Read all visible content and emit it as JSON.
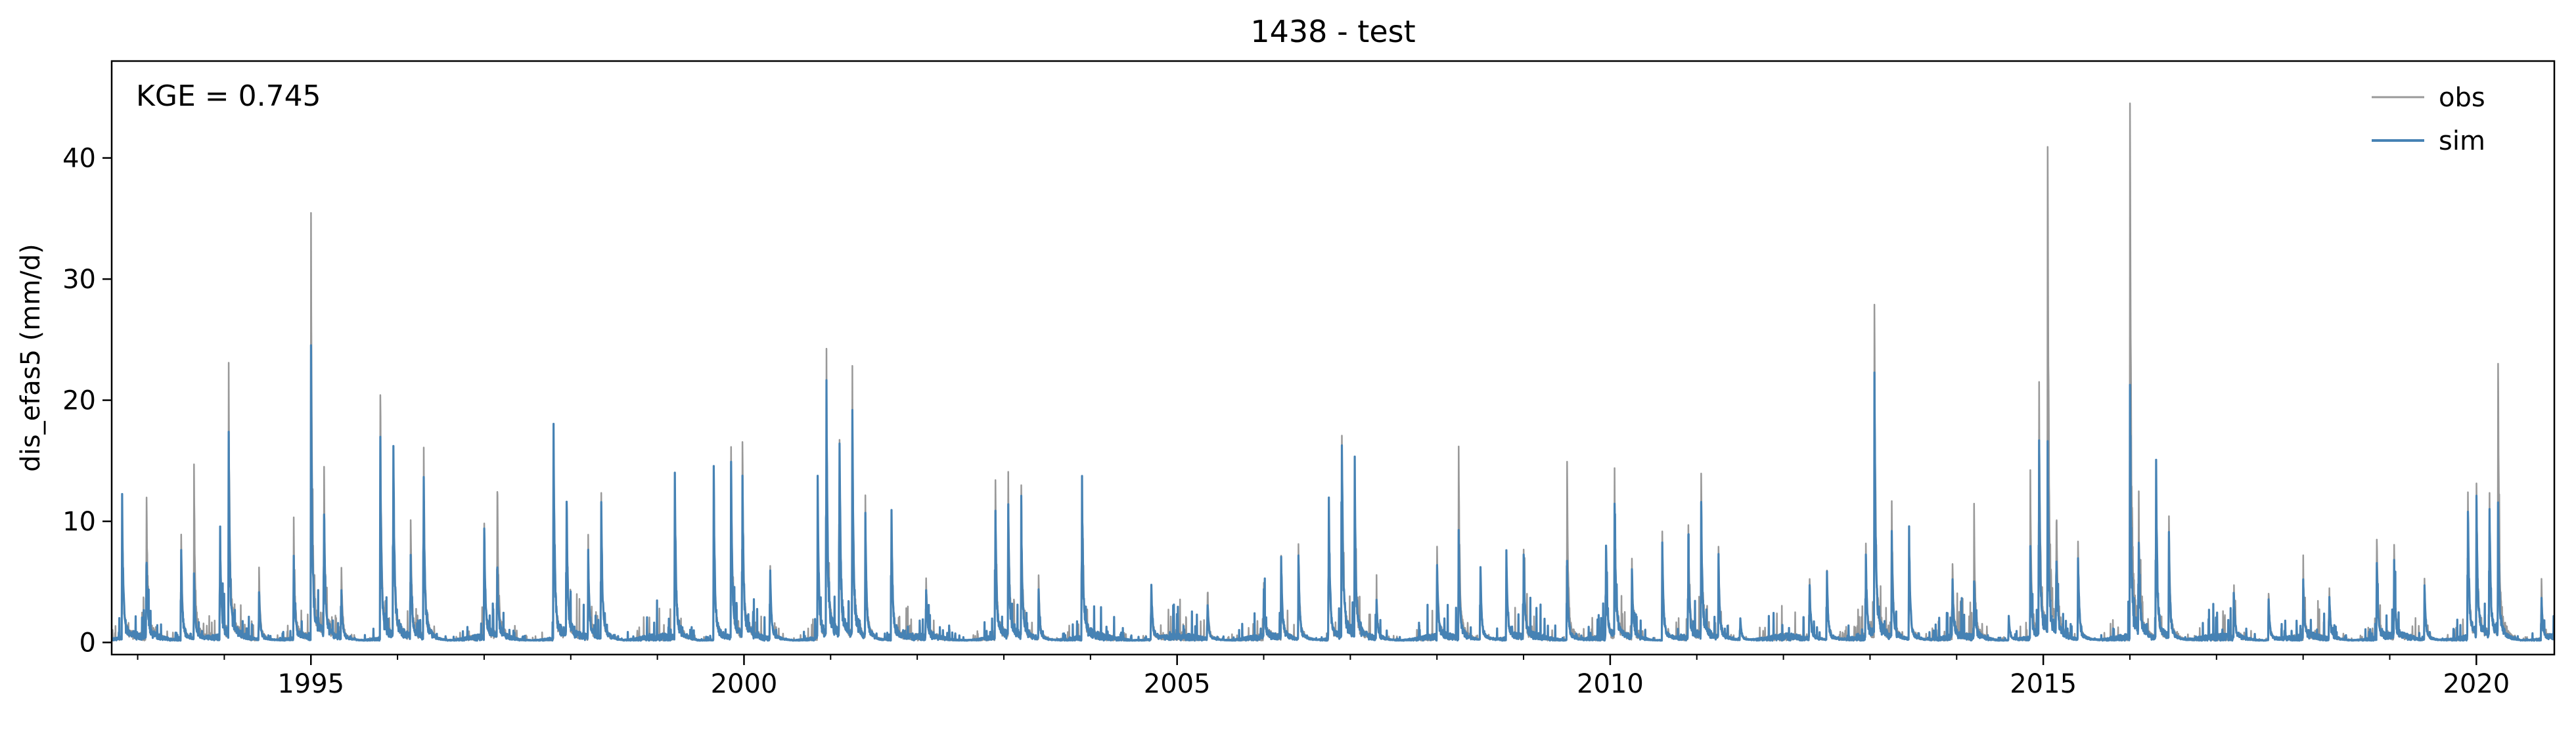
{
  "chart_data": {
    "type": "line",
    "title": "1438 - test",
    "xlabel": "",
    "ylabel": "dis_efas5 (mm/d)",
    "annotation": "KGE = 0.745",
    "xlim": [
      1992.7,
      2020.9
    ],
    "ylim": [
      -1,
      48
    ],
    "x_ticks": [
      1995,
      2000,
      2005,
      2010,
      2015,
      2020
    ],
    "x_tick_labels": [
      "1995",
      "2000",
      "2005",
      "2010",
      "2015",
      "2020"
    ],
    "y_ticks": [
      0,
      10,
      20,
      30,
      40
    ],
    "y_tick_labels": [
      "0",
      "10",
      "20",
      "30",
      "40"
    ],
    "grid": false,
    "legend_position": "top-right",
    "series": [
      {
        "name": "obs",
        "color": "#999999",
        "peaks": [
          [
            1992.82,
            11
          ],
          [
            1993.1,
            13
          ],
          [
            1993.5,
            9
          ],
          [
            1993.65,
            13
          ],
          [
            1993.95,
            10
          ],
          [
            1994.05,
            21
          ],
          [
            1994.4,
            6
          ],
          [
            1994.8,
            9.5
          ],
          [
            1995.0,
            33.2
          ],
          [
            1995.15,
            14
          ],
          [
            1995.35,
            6
          ],
          [
            1995.8,
            20
          ],
          [
            1995.95,
            16
          ],
          [
            1996.15,
            10
          ],
          [
            1996.3,
            16
          ],
          [
            1997.0,
            9
          ],
          [
            1997.15,
            12.5
          ],
          [
            1997.8,
            17.5
          ],
          [
            1997.95,
            11
          ],
          [
            1998.2,
            8
          ],
          [
            1998.35,
            12
          ],
          [
            1999.2,
            13
          ],
          [
            1999.65,
            13
          ],
          [
            1999.85,
            15
          ],
          [
            1999.98,
            17.2
          ],
          [
            2000.3,
            6.5
          ],
          [
            2000.85,
            12
          ],
          [
            2000.95,
            23.5
          ],
          [
            2001.1,
            18
          ],
          [
            2001.25,
            20
          ],
          [
            2001.4,
            11
          ],
          [
            2001.7,
            12
          ],
          [
            2002.1,
            5.5
          ],
          [
            2002.9,
            14
          ],
          [
            2003.05,
            12.5
          ],
          [
            2003.2,
            12
          ],
          [
            2003.4,
            5
          ],
          [
            2003.9,
            14
          ],
          [
            2004.7,
            4.5
          ],
          [
            2005.35,
            4
          ],
          [
            2006.0,
            4.5
          ],
          [
            2006.2,
            6.5
          ],
          [
            2006.4,
            8
          ],
          [
            2006.75,
            11
          ],
          [
            2006.9,
            19
          ],
          [
            2007.05,
            12
          ],
          [
            2007.3,
            4
          ],
          [
            2008.0,
            7.5
          ],
          [
            2008.25,
            14.7
          ],
          [
            2008.5,
            6
          ],
          [
            2008.8,
            7
          ],
          [
            2009.0,
            7.5
          ],
          [
            2009.5,
            15.2
          ],
          [
            2009.95,
            7
          ],
          [
            2010.05,
            12.8
          ],
          [
            2010.25,
            6
          ],
          [
            2010.6,
            9
          ],
          [
            2010.9,
            10
          ],
          [
            2011.05,
            12.8
          ],
          [
            2011.25,
            7
          ],
          [
            2011.5,
            2
          ],
          [
            2012.3,
            5.5
          ],
          [
            2012.5,
            6
          ],
          [
            2012.95,
            8
          ],
          [
            2013.05,
            26.5
          ],
          [
            2013.25,
            10.5
          ],
          [
            2013.45,
            8.5
          ],
          [
            2013.95,
            6.5
          ],
          [
            2014.2,
            9.5
          ],
          [
            2014.6,
            2
          ],
          [
            2014.85,
            12.5
          ],
          [
            2014.95,
            20.7
          ],
          [
            2015.05,
            38.6
          ],
          [
            2015.15,
            9
          ],
          [
            2015.4,
            8.5
          ],
          [
            2016.0,
            45.5
          ],
          [
            2016.1,
            9
          ],
          [
            2016.3,
            15
          ],
          [
            2016.45,
            10
          ],
          [
            2017.2,
            4
          ],
          [
            2017.6,
            4
          ],
          [
            2018.0,
            5.5
          ],
          [
            2018.3,
            4.5
          ],
          [
            2018.85,
            8
          ],
          [
            2019.05,
            7
          ],
          [
            2019.4,
            5
          ],
          [
            2019.9,
            13
          ],
          [
            2020.0,
            12.8
          ],
          [
            2020.15,
            11.5
          ],
          [
            2020.25,
            22
          ],
          [
            2020.75,
            4.5
          ]
        ]
      },
      {
        "name": "sim",
        "color": "#4682b4",
        "peaks": [
          [
            1992.82,
            10.8
          ],
          [
            1993.1,
            7.5
          ],
          [
            1993.5,
            8
          ],
          [
            1993.65,
            5
          ],
          [
            1993.95,
            9
          ],
          [
            1994.05,
            15.5
          ],
          [
            1994.4,
            4
          ],
          [
            1994.8,
            6.5
          ],
          [
            1995.0,
            22.6
          ],
          [
            1995.15,
            11
          ],
          [
            1995.35,
            4
          ],
          [
            1995.8,
            16
          ],
          [
            1995.95,
            16.4
          ],
          [
            1996.15,
            7
          ],
          [
            1996.3,
            13.8
          ],
          [
            1997.0,
            9.2
          ],
          [
            1997.15,
            6
          ],
          [
            1997.8,
            17.8
          ],
          [
            1997.95,
            11.2
          ],
          [
            1998.2,
            7
          ],
          [
            1998.35,
            12.2
          ],
          [
            1999.2,
            13.4
          ],
          [
            1999.65,
            12.9
          ],
          [
            1999.85,
            14.1
          ],
          [
            1999.98,
            14
          ],
          [
            2000.3,
            6
          ],
          [
            2000.85,
            12
          ],
          [
            2000.95,
            21.1
          ],
          [
            2001.1,
            18.3
          ],
          [
            2001.25,
            18.3
          ],
          [
            2001.4,
            10
          ],
          [
            2001.7,
            12.2
          ],
          [
            2002.1,
            4.5
          ],
          [
            2002.9,
            12
          ],
          [
            2003.05,
            10
          ],
          [
            2003.2,
            10
          ],
          [
            2003.4,
            4
          ],
          [
            2003.9,
            14.1
          ],
          [
            2004.7,
            5
          ],
          [
            2005.35,
            3
          ],
          [
            2006.0,
            4
          ],
          [
            2006.2,
            6.5
          ],
          [
            2006.4,
            7
          ],
          [
            2006.75,
            12
          ],
          [
            2006.9,
            18.3
          ],
          [
            2007.05,
            13
          ],
          [
            2007.3,
            3.5
          ],
          [
            2008.0,
            6
          ],
          [
            2008.25,
            8.5
          ],
          [
            2008.5,
            6.5
          ],
          [
            2008.8,
            7.5
          ],
          [
            2009.0,
            7
          ],
          [
            2009.5,
            7
          ],
          [
            2009.95,
            8
          ],
          [
            2010.05,
            10.8
          ],
          [
            2010.25,
            5.5
          ],
          [
            2010.6,
            8
          ],
          [
            2010.9,
            8
          ],
          [
            2011.05,
            10.7
          ],
          [
            2011.25,
            6
          ],
          [
            2011.5,
            2
          ],
          [
            2012.3,
            5
          ],
          [
            2012.5,
            6
          ],
          [
            2012.95,
            7
          ],
          [
            2013.05,
            20.8
          ],
          [
            2013.25,
            8
          ],
          [
            2013.45,
            8.5
          ],
          [
            2013.95,
            5
          ],
          [
            2014.2,
            5
          ],
          [
            2014.6,
            2
          ],
          [
            2014.85,
            7
          ],
          [
            2014.95,
            15.8
          ],
          [
            2015.05,
            14.6
          ],
          [
            2015.15,
            6
          ],
          [
            2015.4,
            7
          ],
          [
            2016.0,
            21.1
          ],
          [
            2016.1,
            8
          ],
          [
            2016.3,
            15.3
          ],
          [
            2016.45,
            8
          ],
          [
            2017.2,
            3.5
          ],
          [
            2017.6,
            3.5
          ],
          [
            2018.0,
            4.5
          ],
          [
            2018.3,
            4
          ],
          [
            2018.85,
            6
          ],
          [
            2019.05,
            6
          ],
          [
            2019.4,
            4.5
          ],
          [
            2019.9,
            11.8
          ],
          [
            2020.0,
            11
          ],
          [
            2020.15,
            11.4
          ],
          [
            2020.25,
            10
          ],
          [
            2020.75,
            3.5
          ]
        ]
      }
    ]
  }
}
